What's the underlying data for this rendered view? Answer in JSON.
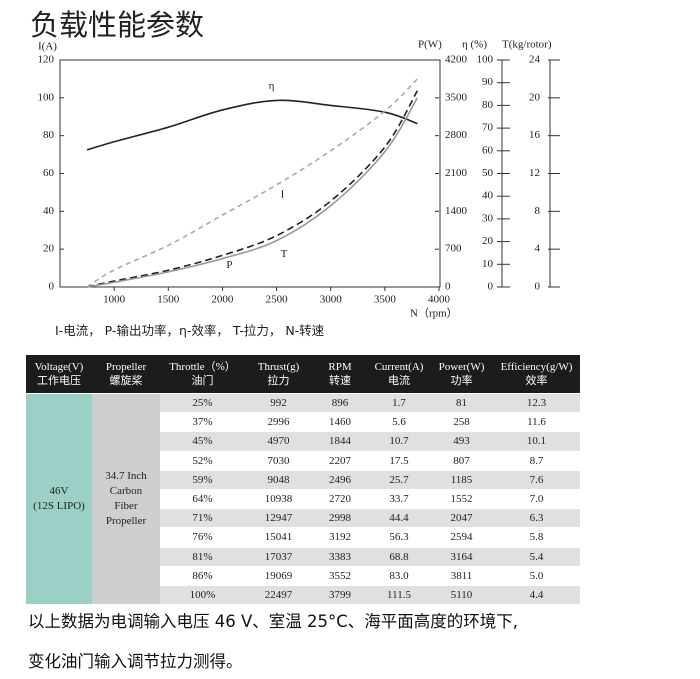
{
  "title": "负载性能参数",
  "chart": {
    "type": "line",
    "x_label": "N（rpm）",
    "xlim": [
      500,
      4000
    ],
    "xticks": [
      1000,
      1500,
      2000,
      2500,
      3000,
      3500,
      4000
    ],
    "axes": [
      {
        "label": "I(A)",
        "lim": [
          0,
          120
        ],
        "ticks": [
          0,
          20,
          40,
          60,
          80,
          100,
          120
        ]
      },
      {
        "label": "P(W)",
        "lim": [
          0,
          4200
        ],
        "ticks": [
          0,
          700,
          1400,
          2100,
          2800,
          3500,
          4200
        ]
      },
      {
        "label": "η (%)",
        "lim": [
          0,
          100
        ],
        "ticks": [
          0,
          10,
          20,
          30,
          40,
          50,
          60,
          70,
          80,
          90,
          100
        ]
      },
      {
        "label": "T(kg/rotor)",
        "lim": [
          0,
          24
        ],
        "ticks": [
          0,
          4,
          8,
          12,
          16,
          20,
          24
        ]
      }
    ],
    "series": [
      {
        "name": "η",
        "axis": 2,
        "color": "#222222",
        "dash": "none",
        "x": [
          750,
          1000,
          1500,
          2000,
          2500,
          3000,
          3500,
          3800
        ],
        "values": [
          60.4,
          64,
          70.4,
          78,
          82.2,
          80,
          77,
          72
        ]
      },
      {
        "name": "I",
        "axis": 0,
        "color": "#aaaaaa",
        "dash": "5 4",
        "x": [
          750,
          1000,
          1500,
          2000,
          2500,
          3000,
          3500,
          3800
        ],
        "values": [
          0,
          9,
          22,
          38,
          54,
          72,
          93,
          110
        ]
      },
      {
        "name": "P",
        "axis": 1,
        "color": "#222222",
        "dash": "7 4",
        "x": [
          750,
          1000,
          1500,
          2000,
          2500,
          3000,
          3500,
          3800
        ],
        "values": [
          0,
          110,
          310,
          585,
          950,
          1590,
          2590,
          3630
        ]
      },
      {
        "name": "T",
        "axis": 3,
        "color": "#999999",
        "dash": "none",
        "x": [
          750,
          1000,
          1500,
          2000,
          2500,
          3000,
          3500,
          3800
        ],
        "values": [
          0,
          0.5,
          1.6,
          3.0,
          4.9,
          8.6,
          14.3,
          20
        ]
      }
    ],
    "legend": "I-电流， P-输出功率，η-效率， T-拉力， N-转速"
  },
  "table": {
    "header": [
      [
        "Voltage(V)",
        "工作电压"
      ],
      [
        "Propeller",
        "螺旋桨"
      ],
      [
        "Throttle（%）",
        "油门"
      ],
      [
        "Thrust(g)",
        "拉力"
      ],
      [
        "RPM",
        "转速"
      ],
      [
        "Current(A)",
        "电流"
      ],
      [
        "Power(W)",
        "功率"
      ],
      [
        "Efficiency(g/W)",
        "效率"
      ]
    ],
    "voltage": [
      "46V",
      "(12S LIPO)"
    ],
    "propeller": [
      "34.7 Inch",
      "Carbon",
      "Fiber",
      "Propeller"
    ],
    "rows": [
      [
        "25%",
        "992",
        "896",
        "1.7",
        "81",
        "12.3"
      ],
      [
        "37%",
        "2996",
        "1460",
        "5.6",
        "258",
        "11.6"
      ],
      [
        "45%",
        "4970",
        "1844",
        "10.7",
        "493",
        "10.1"
      ],
      [
        "52%",
        "7030",
        "2207",
        "17.5",
        "807",
        "8.7"
      ],
      [
        "59%",
        "9048",
        "2496",
        "25.7",
        "1185",
        "7.6"
      ],
      [
        "64%",
        "10938",
        "2720",
        "33.7",
        "1552",
        "7.0"
      ],
      [
        "71%",
        "12947",
        "2998",
        "44.4",
        "2047",
        "6.3"
      ],
      [
        "76%",
        "15041",
        "3192",
        "56.3",
        "2594",
        "5.8"
      ],
      [
        "81%",
        "17037",
        "3383",
        "68.8",
        "3164",
        "5.4"
      ],
      [
        "86%",
        "19069",
        "3552",
        "83.0",
        "3811",
        "5.0"
      ],
      [
        "100%",
        "22497",
        "3799",
        "111.5",
        "5110",
        "4.4"
      ]
    ]
  },
  "note": [
    "以上数据为电调输入电压 46 V、室温 25°C、海平面高度的环境下,",
    "变化油门输入调节拉力测得。"
  ]
}
